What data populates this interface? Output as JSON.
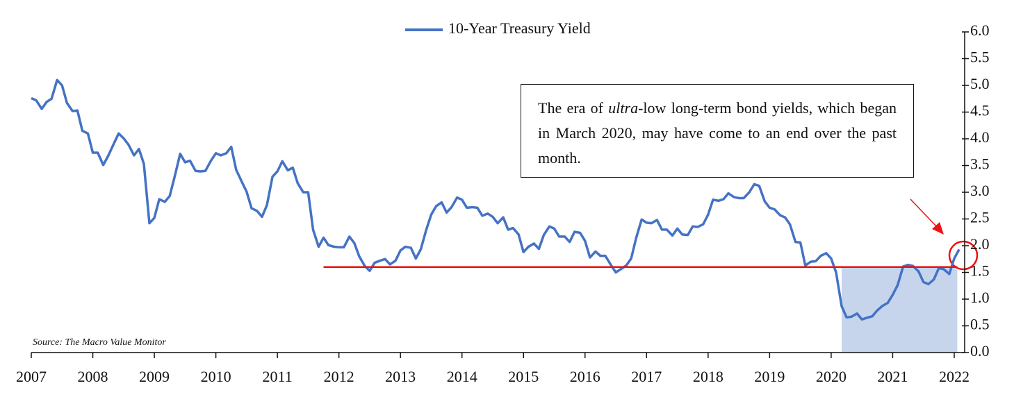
{
  "chart_data": {
    "type": "line",
    "source": "Source: The Macro Value Monitor",
    "annotation": {
      "before": "The era of ",
      "emphasis": "ultra",
      "after": "-low long-term bond yields, which began in March 2020, may have come to an end over the past month."
    },
    "xlim": [
      2007,
      2022.17
    ],
    "xticks": [
      2007,
      2008,
      2009,
      2010,
      2011,
      2012,
      2013,
      2014,
      2015,
      2016,
      2017,
      2018,
      2019,
      2020,
      2021,
      2022
    ],
    "ylim": [
      0,
      6
    ],
    "yticks": [
      {
        "value": 0,
        "label": "0.0"
      },
      0.5,
      {
        "value": 1,
        "label": "1.0"
      },
      1.5,
      {
        "value": 2,
        "label": "2.0"
      },
      2.5,
      {
        "value": 3,
        "label": "3.0"
      },
      3.5,
      {
        "value": 4,
        "label": "4.0"
      },
      4.5,
      {
        "value": 5,
        "label": "5.0"
      },
      5.5,
      {
        "value": 6,
        "label": "6.0"
      }
    ],
    "grid": false,
    "legend": "top",
    "reference_line": {
      "y": 1.6,
      "x_start": 2011.75,
      "x_end": 2022.05,
      "color": "#ee1111"
    },
    "shaded_region": {
      "x_start": 2020.17,
      "x_end": 2022.05,
      "y_top": 1.6,
      "color": "#c6d5ec"
    },
    "x": [
      2007.0,
      2007.08,
      2007.17,
      2007.25,
      2007.33,
      2007.42,
      2007.5,
      2007.58,
      2007.67,
      2007.75,
      2007.83,
      2007.92,
      2008.0,
      2008.08,
      2008.17,
      2008.25,
      2008.33,
      2008.42,
      2008.5,
      2008.58,
      2008.67,
      2008.75,
      2008.83,
      2008.92,
      2009.0,
      2009.08,
      2009.17,
      2009.25,
      2009.33,
      2009.42,
      2009.5,
      2009.58,
      2009.67,
      2009.75,
      2009.83,
      2009.92,
      2010.0,
      2010.08,
      2010.17,
      2010.25,
      2010.33,
      2010.42,
      2010.5,
      2010.58,
      2010.67,
      2010.75,
      2010.83,
      2010.92,
      2011.0,
      2011.08,
      2011.17,
      2011.25,
      2011.33,
      2011.42,
      2011.5,
      2011.58,
      2011.67,
      2011.75,
      2011.83,
      2011.92,
      2012.0,
      2012.08,
      2012.17,
      2012.25,
      2012.33,
      2012.42,
      2012.5,
      2012.58,
      2012.67,
      2012.75,
      2012.83,
      2012.92,
      2013.0,
      2013.08,
      2013.17,
      2013.25,
      2013.33,
      2013.42,
      2013.5,
      2013.58,
      2013.67,
      2013.75,
      2013.83,
      2013.92,
      2014.0,
      2014.08,
      2014.17,
      2014.25,
      2014.33,
      2014.42,
      2014.5,
      2014.58,
      2014.67,
      2014.75,
      2014.83,
      2014.92,
      2015.0,
      2015.08,
      2015.17,
      2015.25,
      2015.33,
      2015.42,
      2015.5,
      2015.58,
      2015.67,
      2015.75,
      2015.83,
      2015.92,
      2016.0,
      2016.08,
      2016.17,
      2016.25,
      2016.33,
      2016.42,
      2016.5,
      2016.58,
      2016.67,
      2016.75,
      2016.83,
      2016.92,
      2017.0,
      2017.08,
      2017.17,
      2017.25,
      2017.33,
      2017.42,
      2017.5,
      2017.58,
      2017.67,
      2017.75,
      2017.83,
      2017.92,
      2018.0,
      2018.08,
      2018.17,
      2018.25,
      2018.33,
      2018.42,
      2018.5,
      2018.58,
      2018.67,
      2018.75,
      2018.83,
      2018.92,
      2019.0,
      2019.08,
      2019.17,
      2019.25,
      2019.33,
      2019.42,
      2019.5,
      2019.58,
      2019.67,
      2019.75,
      2019.83,
      2019.92,
      2020.0,
      2020.08,
      2020.17,
      2020.25,
      2020.33,
      2020.42,
      2020.5,
      2020.58,
      2020.67,
      2020.75,
      2020.83,
      2020.92,
      2021.0,
      2021.08,
      2021.17,
      2021.25,
      2021.33,
      2021.42,
      2021.5,
      2021.58,
      2021.67,
      2021.75,
      2021.83,
      2021.92,
      2022.0,
      2022.08
    ],
    "series": [
      {
        "name": "10-Year Treasury Yield",
        "color": "#4472c4",
        "values": [
          4.76,
          4.72,
          4.56,
          4.69,
          4.75,
          5.1,
          5.0,
          4.67,
          4.52,
          4.53,
          4.15,
          4.1,
          3.74,
          3.74,
          3.51,
          3.68,
          3.88,
          4.1,
          4.01,
          3.89,
          3.69,
          3.81,
          3.53,
          2.42,
          2.52,
          2.87,
          2.82,
          2.93,
          3.29,
          3.72,
          3.56,
          3.59,
          3.4,
          3.39,
          3.4,
          3.59,
          3.73,
          3.69,
          3.73,
          3.85,
          3.42,
          3.2,
          3.01,
          2.7,
          2.65,
          2.54,
          2.76,
          3.29,
          3.39,
          3.58,
          3.41,
          3.46,
          3.17,
          3.0,
          3.0,
          2.3,
          1.98,
          2.15,
          2.01,
          1.98,
          1.97,
          1.97,
          2.17,
          2.05,
          1.8,
          1.62,
          1.53,
          1.68,
          1.72,
          1.75,
          1.65,
          1.72,
          1.91,
          1.98,
          1.96,
          1.76,
          1.93,
          2.3,
          2.58,
          2.74,
          2.81,
          2.62,
          2.72,
          2.9,
          2.86,
          2.71,
          2.72,
          2.71,
          2.56,
          2.6,
          2.54,
          2.42,
          2.53,
          2.3,
          2.33,
          2.21,
          1.88,
          1.98,
          2.04,
          1.94,
          2.2,
          2.36,
          2.32,
          2.17,
          2.17,
          2.07,
          2.26,
          2.24,
          2.09,
          1.78,
          1.89,
          1.81,
          1.81,
          1.64,
          1.5,
          1.56,
          1.63,
          1.76,
          2.14,
          2.49,
          2.43,
          2.42,
          2.48,
          2.3,
          2.3,
          2.19,
          2.32,
          2.21,
          2.2,
          2.36,
          2.35,
          2.4,
          2.58,
          2.86,
          2.84,
          2.87,
          2.98,
          2.91,
          2.89,
          2.89,
          3.0,
          3.15,
          3.12,
          2.83,
          2.71,
          2.68,
          2.57,
          2.53,
          2.4,
          2.07,
          2.06,
          1.63,
          1.7,
          1.71,
          1.81,
          1.86,
          1.76,
          1.5,
          0.87,
          0.66,
          0.67,
          0.73,
          0.62,
          0.65,
          0.68,
          0.79,
          0.87,
          0.93,
          1.08,
          1.26,
          1.61,
          1.64,
          1.62,
          1.52,
          1.32,
          1.28,
          1.37,
          1.58,
          1.56,
          1.47,
          1.76,
          1.93
        ]
      }
    ]
  }
}
